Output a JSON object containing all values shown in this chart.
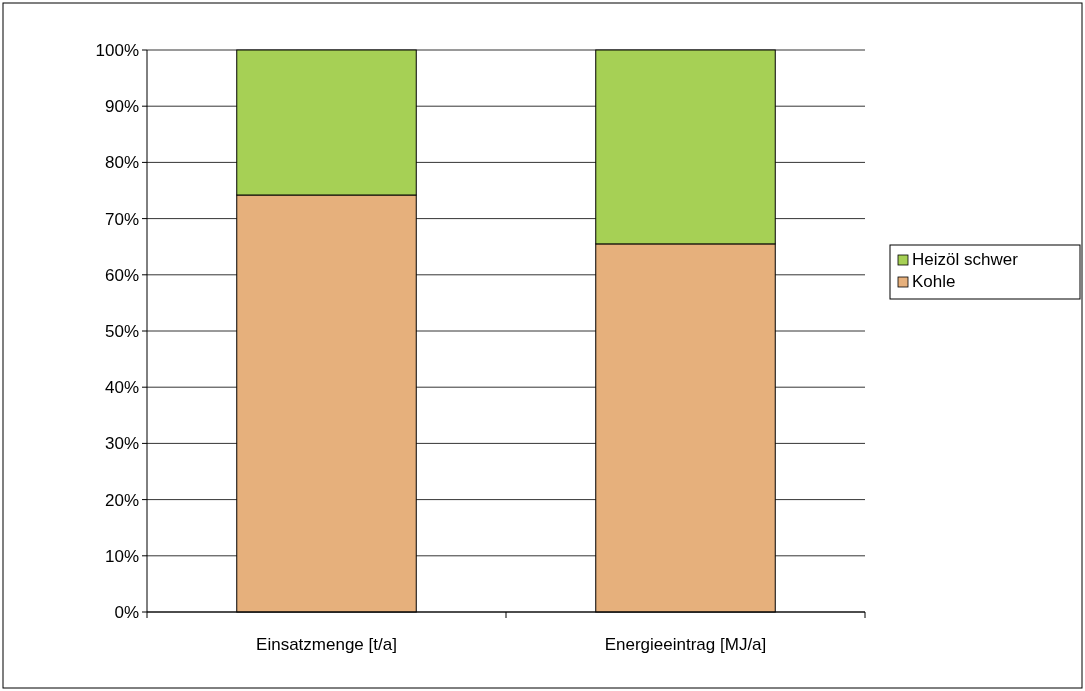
{
  "chart_data": {
    "type": "bar",
    "stacked": true,
    "categories": [
      "Einsatzmenge [t/a]",
      "Energieeintrag [MJ/a]"
    ],
    "series": [
      {
        "name": "Kohle",
        "color": "#e6b07c",
        "values": [
          74.2,
          65.5
        ]
      },
      {
        "name": "Heizöl schwer",
        "color": "#a6d055",
        "values": [
          25.8,
          34.5
        ]
      }
    ],
    "ylim": [
      0,
      100
    ],
    "yticks": [
      {
        "value": 0,
        "label": "0%"
      },
      {
        "value": 10,
        "label": "10%"
      },
      {
        "value": 20,
        "label": "20%"
      },
      {
        "value": 30,
        "label": "30%"
      },
      {
        "value": 40,
        "label": "40%"
      },
      {
        "value": 50,
        "label": "50%"
      },
      {
        "value": 60,
        "label": "60%"
      },
      {
        "value": 70,
        "label": "70%"
      },
      {
        "value": 80,
        "label": "80%"
      },
      {
        "value": 90,
        "label": "90%"
      },
      {
        "value": 100,
        "label": "100%"
      }
    ],
    "grid": "y",
    "legend": "right"
  }
}
